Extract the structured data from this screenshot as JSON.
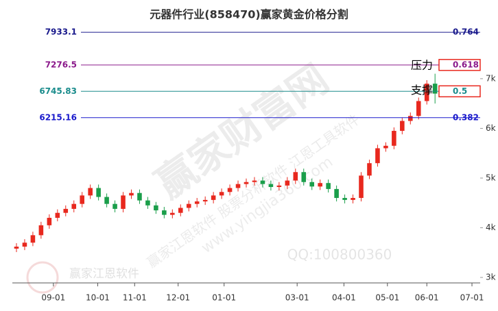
{
  "chart_data": {
    "type": "candlestick",
    "title": "元器件行业(858470)赢家黄金价格分割",
    "open": [
      3580,
      3620,
      3700,
      3850,
      4050,
      4200,
      4300,
      4380,
      4480,
      4650,
      4800,
      4620,
      4480,
      4380,
      4650,
      4700,
      4550,
      4450,
      4350,
      4260,
      4300,
      4400,
      4480,
      4530,
      4560,
      4650,
      4720,
      4800,
      4880,
      4920,
      4950,
      4880,
      4820,
      4850,
      4950,
      5120,
      4920,
      4830,
      4900,
      4780,
      4600,
      4560,
      4600,
      5050,
      5300,
      5600,
      5650,
      5950,
      6150,
      6250,
      6550,
      6900
    ],
    "high": [
      3690,
      3770,
      3920,
      4120,
      4270,
      4370,
      4450,
      4550,
      4720,
      4870,
      4870,
      4690,
      4550,
      4720,
      4770,
      4770,
      4620,
      4520,
      4420,
      4370,
      4470,
      4550,
      4600,
      4630,
      4720,
      4790,
      4870,
      4950,
      4990,
      5020,
      5020,
      4950,
      4920,
      5020,
      5190,
      5190,
      4990,
      4970,
      4970,
      4850,
      4670,
      4670,
      5120,
      5370,
      5670,
      5720,
      6020,
      6220,
      6320,
      6620,
      6970,
      7100
    ],
    "low": [
      3510,
      3550,
      3630,
      3780,
      3980,
      4130,
      4230,
      4310,
      4410,
      4580,
      4550,
      4410,
      4310,
      4310,
      4580,
      4480,
      4380,
      4280,
      4190,
      4190,
      4230,
      4330,
      4410,
      4460,
      4490,
      4580,
      4650,
      4730,
      4810,
      4850,
      4810,
      4750,
      4750,
      4780,
      4880,
      4850,
      4760,
      4760,
      4710,
      4530,
      4490,
      4490,
      4530,
      4980,
      5230,
      5530,
      5580,
      5880,
      6080,
      6180,
      6480,
      6500
    ],
    "close": [
      3620,
      3700,
      3850,
      4050,
      4200,
      4300,
      4380,
      4480,
      4650,
      4800,
      4620,
      4480,
      4380,
      4650,
      4700,
      4550,
      4450,
      4350,
      4260,
      4300,
      4400,
      4480,
      4530,
      4560,
      4650,
      4720,
      4800,
      4880,
      4920,
      4950,
      4880,
      4820,
      4850,
      4950,
      5120,
      4920,
      4830,
      4900,
      4780,
      4600,
      4560,
      4600,
      5050,
      5300,
      5600,
      5650,
      5950,
      6150,
      6250,
      6550,
      6900,
      6700
    ],
    "up_color": "#e8281e",
    "down_color": "#1a9e4a",
    "xlim": [
      0,
      57
    ],
    "xticks": [
      {
        "value": 5,
        "label": "09-01"
      },
      {
        "value": 10.4,
        "label": "10-01"
      },
      {
        "value": 14.9,
        "label": "11-01"
      },
      {
        "value": 20.2,
        "label": "12-01"
      },
      {
        "value": 25.8,
        "label": "01-01"
      },
      {
        "value": 34.7,
        "label": "03-01"
      },
      {
        "value": 40.4,
        "label": "04-01"
      },
      {
        "value": 45.7,
        "label": "05-01"
      },
      {
        "value": 50.5,
        "label": "06-01"
      },
      {
        "value": 56,
        "label": "07-01"
      }
    ],
    "ylim": [
      2890,
      8170
    ],
    "yticks": [
      {
        "value": 3000,
        "label": "3k"
      },
      {
        "value": 4000,
        "label": "4k"
      },
      {
        "value": 5000,
        "label": "5k"
      },
      {
        "value": 6000,
        "label": "6k"
      },
      {
        "value": 7000,
        "label": "7k"
      }
    ],
    "levels": [
      {
        "value": 7933.1,
        "ratio": 0.764,
        "color": "#1a1a8c",
        "boxed": false
      },
      {
        "value": 7276.5,
        "ratio": 0.618,
        "color": "#8b1a8b",
        "boxed": true
      },
      {
        "value": 6745.83,
        "ratio": 0.5,
        "color": "#1a8c8c",
        "boxed": true
      },
      {
        "value": 6215.16,
        "ratio": 0.382,
        "color": "#1a1acc",
        "boxed": false
      }
    ],
    "annotations": {
      "resistance": "压力",
      "support": "支撑"
    },
    "watermarks": [
      "赢家财富网",
      "赢家江恩软件 股票分析软件 江恩工具软件",
      "www.yingjia360.com",
      "QQ:100800360",
      "赢家江恩软件"
    ]
  }
}
